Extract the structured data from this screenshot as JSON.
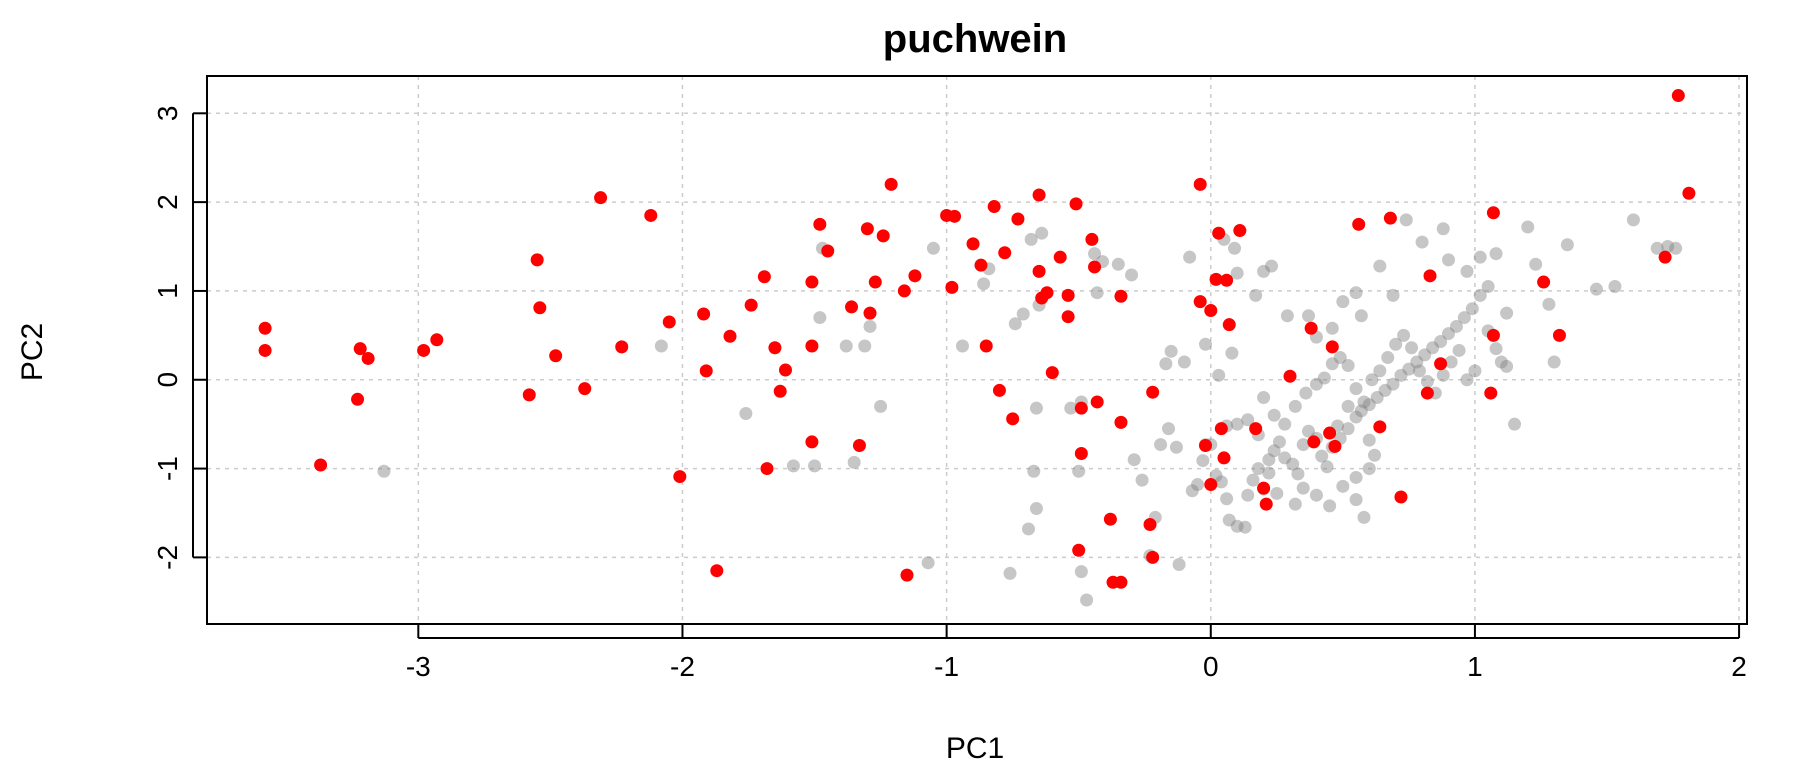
{
  "chart_data": {
    "type": "scatter",
    "title": "puchwein",
    "xlabel": "PC1",
    "ylabel": "PC2",
    "xlim": [
      -3.8,
      2.03
    ],
    "ylim": [
      -2.75,
      3.42
    ],
    "xticks": [
      -3,
      -2,
      -1,
      0,
      1,
      2
    ],
    "yticks": [
      -2,
      -1,
      0,
      1,
      2,
      3
    ],
    "grid": true,
    "colors": {
      "highlight": "#ff0000",
      "base": "#000000"
    },
    "series": [
      {
        "color": "#808080",
        "opacity": 0.45,
        "points": [
          [
            -3.13,
            -1.03
          ],
          [
            -2.08,
            0.38
          ],
          [
            -1.76,
            -0.38
          ],
          [
            -1.58,
            -0.97
          ],
          [
            -1.5,
            -0.97
          ],
          [
            -1.47,
            1.48
          ],
          [
            -1.48,
            0.7
          ],
          [
            -1.38,
            0.38
          ],
          [
            -1.35,
            -0.93
          ],
          [
            -1.31,
            0.38
          ],
          [
            -1.29,
            0.6
          ],
          [
            -1.25,
            -0.3
          ],
          [
            -1.07,
            -2.06
          ],
          [
            -1.05,
            1.48
          ],
          [
            -0.94,
            0.38
          ],
          [
            -0.86,
            1.08
          ],
          [
            -0.84,
            1.25
          ],
          [
            -0.76,
            -2.18
          ],
          [
            -0.74,
            0.63
          ],
          [
            -0.71,
            0.74
          ],
          [
            -0.68,
            1.58
          ],
          [
            -0.65,
            0.84
          ],
          [
            -0.64,
            1.65
          ],
          [
            -0.66,
            -0.32
          ],
          [
            -0.67,
            -1.03
          ],
          [
            -0.66,
            -1.45
          ],
          [
            -0.69,
            -1.68
          ],
          [
            -0.53,
            -0.32
          ],
          [
            -0.49,
            -0.25
          ],
          [
            -0.5,
            -1.03
          ],
          [
            -0.49,
            -2.16
          ],
          [
            -0.47,
            -2.48
          ],
          [
            -0.44,
            1.42
          ],
          [
            -0.41,
            1.33
          ],
          [
            -0.43,
            0.98
          ],
          [
            -0.35,
            1.3
          ],
          [
            -0.3,
            1.18
          ],
          [
            -0.34,
            -0.48
          ],
          [
            -0.29,
            -0.9
          ],
          [
            -0.26,
            -1.13
          ],
          [
            -0.21,
            -1.55
          ],
          [
            -0.23,
            -1.98
          ],
          [
            -0.16,
            -0.55
          ],
          [
            -0.19,
            -0.73
          ],
          [
            -0.13,
            -0.76
          ],
          [
            -0.12,
            -2.08
          ],
          [
            -0.1,
            0.2
          ],
          [
            -0.07,
            -1.25
          ],
          [
            -0.05,
            -1.18
          ],
          [
            -0.02,
            -0.73
          ],
          [
            -0.03,
            -0.91
          ],
          [
            0.0,
            -0.73
          ],
          [
            0.02,
            -1.08
          ],
          [
            0.04,
            -1.15
          ],
          [
            0.06,
            -1.34
          ],
          [
            0.07,
            -1.58
          ],
          [
            0.1,
            -1.65
          ],
          [
            0.13,
            -1.66
          ],
          [
            0.14,
            -1.3
          ],
          [
            0.16,
            -1.13
          ],
          [
            0.18,
            -1.0
          ],
          [
            0.2,
            -1.23
          ],
          [
            0.22,
            -0.9
          ],
          [
            0.24,
            -0.8
          ],
          [
            0.26,
            -0.7
          ],
          [
            0.28,
            -0.88
          ],
          [
            0.31,
            -0.95
          ],
          [
            0.33,
            -1.06
          ],
          [
            0.35,
            -0.73
          ],
          [
            0.37,
            -0.58
          ],
          [
            0.4,
            -0.66
          ],
          [
            0.42,
            -0.86
          ],
          [
            0.44,
            -0.98
          ],
          [
            0.46,
            -0.76
          ],
          [
            0.49,
            -0.66
          ],
          [
            0.52,
            -0.55
          ],
          [
            0.55,
            -0.42
          ],
          [
            0.57,
            -0.35
          ],
          [
            0.6,
            -0.28
          ],
          [
            0.63,
            -0.2
          ],
          [
            0.66,
            -0.12
          ],
          [
            0.69,
            -0.05
          ],
          [
            0.72,
            0.05
          ],
          [
            0.75,
            0.12
          ],
          [
            0.78,
            0.2
          ],
          [
            0.81,
            0.28
          ],
          [
            0.84,
            0.36
          ],
          [
            0.87,
            0.43
          ],
          [
            0.9,
            0.52
          ],
          [
            0.93,
            0.6
          ],
          [
            0.96,
            0.7
          ],
          [
            0.99,
            0.8
          ],
          [
            1.02,
            0.95
          ],
          [
            1.05,
            0.55
          ],
          [
            1.08,
            0.35
          ],
          [
            1.1,
            0.2
          ],
          [
            1.12,
            0.15
          ],
          [
            1.15,
            -0.5
          ],
          [
            0.43,
            0.02
          ],
          [
            0.46,
            0.18
          ],
          [
            0.49,
            0.25
          ],
          [
            0.52,
            0.16
          ],
          [
            0.55,
            -0.1
          ],
          [
            0.58,
            -0.25
          ],
          [
            0.61,
            0.0
          ],
          [
            0.64,
            0.1
          ],
          [
            0.67,
            0.25
          ],
          [
            0.7,
            0.4
          ],
          [
            0.73,
            0.5
          ],
          [
            0.76,
            0.36
          ],
          [
            0.79,
            0.1
          ],
          [
            0.82,
            -0.02
          ],
          [
            0.85,
            -0.15
          ],
          [
            0.88,
            0.05
          ],
          [
            0.91,
            0.2
          ],
          [
            0.94,
            0.33
          ],
          [
            0.97,
            0.0
          ],
          [
            1.0,
            0.1
          ],
          [
            0.2,
            -0.2
          ],
          [
            0.24,
            -0.4
          ],
          [
            0.28,
            -0.5
          ],
          [
            0.32,
            -0.3
          ],
          [
            0.36,
            -0.15
          ],
          [
            0.4,
            -0.05
          ],
          [
            0.1,
            -0.5
          ],
          [
            0.06,
            -0.52
          ],
          [
            0.14,
            -0.45
          ],
          [
            0.18,
            -0.62
          ],
          [
            0.03,
            0.05
          ],
          [
            0.08,
            0.3
          ],
          [
            -0.02,
            0.4
          ],
          [
            0.05,
            1.58
          ],
          [
            0.09,
            1.48
          ],
          [
            0.1,
            1.2
          ],
          [
            0.17,
            0.95
          ],
          [
            0.2,
            1.22
          ],
          [
            0.23,
            1.28
          ],
          [
            0.29,
            0.72
          ],
          [
            0.37,
            0.72
          ],
          [
            0.4,
            0.48
          ],
          [
            0.46,
            0.58
          ],
          [
            0.5,
            0.88
          ],
          [
            0.55,
            0.98
          ],
          [
            0.57,
            0.72
          ],
          [
            0.64,
            1.28
          ],
          [
            0.69,
            0.95
          ],
          [
            0.74,
            1.8
          ],
          [
            0.8,
            1.55
          ],
          [
            0.88,
            1.7
          ],
          [
            0.9,
            1.35
          ],
          [
            0.97,
            1.22
          ],
          [
            1.02,
            1.38
          ],
          [
            1.08,
            1.42
          ],
          [
            1.05,
            1.05
          ],
          [
            1.12,
            0.75
          ],
          [
            1.2,
            1.72
          ],
          [
            1.23,
            1.3
          ],
          [
            1.28,
            0.85
          ],
          [
            1.3,
            0.2
          ],
          [
            1.35,
            1.52
          ],
          [
            1.46,
            1.02
          ],
          [
            1.53,
            1.05
          ],
          [
            1.6,
            1.8
          ],
          [
            1.69,
            1.48
          ],
          [
            1.73,
            1.5
          ],
          [
            1.76,
            1.48
          ],
          [
            -0.17,
            0.18
          ],
          [
            -0.15,
            0.32
          ],
          [
            -0.08,
            1.38
          ],
          [
            0.4,
            -1.3
          ],
          [
            0.5,
            -1.2
          ],
          [
            0.55,
            -1.1
          ],
          [
            0.6,
            -1.0
          ],
          [
            0.62,
            -0.85
          ],
          [
            0.35,
            -1.22
          ],
          [
            0.32,
            -1.4
          ],
          [
            0.25,
            -1.28
          ],
          [
            0.22,
            -1.05
          ],
          [
            0.45,
            -1.42
          ],
          [
            0.55,
            -1.35
          ],
          [
            0.58,
            -1.55
          ],
          [
            0.48,
            -0.52
          ],
          [
            0.52,
            -0.3
          ],
          [
            0.6,
            -0.68
          ]
        ]
      },
      {
        "color": "#ff0000",
        "opacity": 1,
        "points": [
          [
            -3.58,
            0.58
          ],
          [
            -3.58,
            0.33
          ],
          [
            -3.37,
            -0.96
          ],
          [
            -3.22,
            0.35
          ],
          [
            -3.19,
            0.24
          ],
          [
            -3.23,
            -0.22
          ],
          [
            -2.98,
            0.33
          ],
          [
            -2.93,
            0.45
          ],
          [
            -2.58,
            -0.17
          ],
          [
            -2.55,
            1.35
          ],
          [
            -2.54,
            0.81
          ],
          [
            -2.48,
            0.27
          ],
          [
            -2.37,
            -0.1
          ],
          [
            -2.31,
            2.05
          ],
          [
            -2.23,
            0.37
          ],
          [
            -2.12,
            1.85
          ],
          [
            -2.05,
            0.65
          ],
          [
            -2.01,
            -1.09
          ],
          [
            -1.92,
            0.74
          ],
          [
            -1.91,
            0.1
          ],
          [
            -1.87,
            -2.15
          ],
          [
            -1.82,
            0.49
          ],
          [
            -1.74,
            0.84
          ],
          [
            -1.69,
            1.16
          ],
          [
            -1.68,
            -1.0
          ],
          [
            -1.65,
            0.36
          ],
          [
            -1.63,
            -0.13
          ],
          [
            -1.61,
            0.11
          ],
          [
            -1.51,
            1.1
          ],
          [
            -1.51,
            0.38
          ],
          [
            -1.51,
            -0.7
          ],
          [
            -1.48,
            1.75
          ],
          [
            -1.45,
            1.45
          ],
          [
            -1.36,
            0.82
          ],
          [
            -1.33,
            -0.74
          ],
          [
            -1.3,
            1.7
          ],
          [
            -1.29,
            0.75
          ],
          [
            -1.27,
            1.1
          ],
          [
            -1.24,
            1.62
          ],
          [
            -1.21,
            2.2
          ],
          [
            -1.16,
            1.0
          ],
          [
            -1.15,
            -2.2
          ],
          [
            -1.12,
            1.17
          ],
          [
            -1.0,
            1.85
          ],
          [
            -0.97,
            1.84
          ],
          [
            -0.98,
            1.04
          ],
          [
            -0.9,
            1.53
          ],
          [
            -0.87,
            1.29
          ],
          [
            -0.85,
            0.38
          ],
          [
            -0.82,
            1.95
          ],
          [
            -0.8,
            -0.12
          ],
          [
            -0.78,
            1.43
          ],
          [
            -0.75,
            -0.44
          ],
          [
            -0.73,
            1.81
          ],
          [
            -0.65,
            2.08
          ],
          [
            -0.65,
            1.22
          ],
          [
            -0.64,
            0.92
          ],
          [
            -0.62,
            0.98
          ],
          [
            -0.6,
            0.08
          ],
          [
            -0.57,
            1.38
          ],
          [
            -0.54,
            0.95
          ],
          [
            -0.54,
            0.71
          ],
          [
            -0.51,
            1.98
          ],
          [
            -0.49,
            -0.32
          ],
          [
            -0.49,
            -0.83
          ],
          [
            -0.5,
            -1.92
          ],
          [
            -0.45,
            1.58
          ],
          [
            -0.44,
            1.27
          ],
          [
            -0.43,
            -0.25
          ],
          [
            -0.38,
            -1.57
          ],
          [
            -0.37,
            -2.28
          ],
          [
            -0.34,
            0.94
          ],
          [
            -0.34,
            -0.48
          ],
          [
            -0.34,
            -2.28
          ],
          [
            -0.22,
            -0.14
          ],
          [
            -0.23,
            -1.63
          ],
          [
            -0.22,
            -2.0
          ],
          [
            -0.04,
            2.2
          ],
          [
            -0.04,
            0.88
          ],
          [
            -0.02,
            -0.74
          ],
          [
            0.0,
            0.78
          ],
          [
            0.0,
            -1.18
          ],
          [
            0.02,
            1.13
          ],
          [
            0.03,
            1.65
          ],
          [
            0.06,
            1.12
          ],
          [
            0.04,
            -0.55
          ],
          [
            0.05,
            -0.88
          ],
          [
            0.07,
            0.62
          ],
          [
            0.11,
            1.68
          ],
          [
            0.17,
            -0.55
          ],
          [
            0.2,
            -1.22
          ],
          [
            0.21,
            -1.4
          ],
          [
            0.3,
            0.04
          ],
          [
            0.38,
            0.58
          ],
          [
            0.39,
            -0.7
          ],
          [
            0.46,
            0.37
          ],
          [
            0.45,
            -0.6
          ],
          [
            0.47,
            -0.75
          ],
          [
            0.56,
            1.75
          ],
          [
            0.64,
            -0.53
          ],
          [
            0.68,
            1.82
          ],
          [
            0.72,
            -1.32
          ],
          [
            0.82,
            -0.15
          ],
          [
            0.83,
            1.17
          ],
          [
            0.87,
            0.18
          ],
          [
            1.07,
            1.88
          ],
          [
            1.07,
            0.5
          ],
          [
            1.06,
            -0.15
          ],
          [
            1.26,
            1.1
          ],
          [
            1.32,
            0.5
          ],
          [
            1.72,
            1.38
          ],
          [
            1.77,
            3.2
          ],
          [
            1.81,
            2.1
          ]
        ]
      }
    ]
  }
}
